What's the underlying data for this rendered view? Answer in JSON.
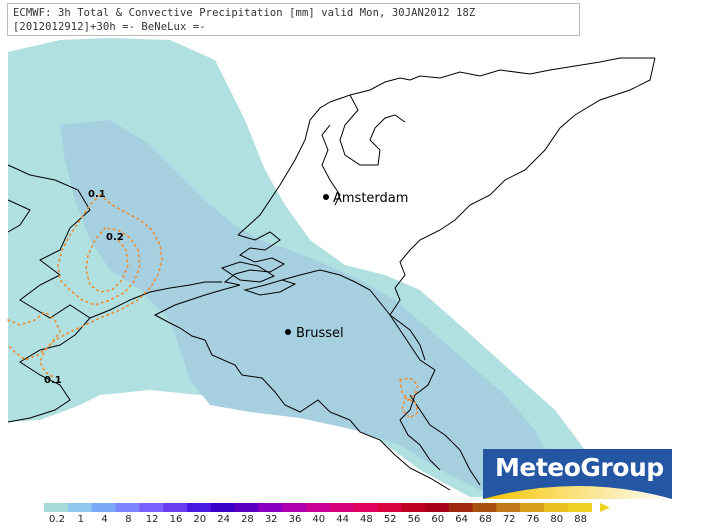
{
  "header": {
    "line1": "ECMWF: 3h Total & Convective Precipitation [mm] valid Mon, 30JAN2012 18Z",
    "line2": "[2012012912]+30h =- BeNeLux =-"
  },
  "cities": [
    {
      "name": "Amsterdam"
    },
    {
      "name": "Brussel"
    }
  ],
  "contour_labels": [
    "0.1",
    "0.2",
    "0.1"
  ],
  "logo": {
    "text": "MeteoGroup"
  },
  "legend": {
    "ticks": [
      "0.2",
      "1",
      "4",
      "8",
      "12",
      "16",
      "20",
      "24",
      "28",
      "32",
      "36",
      "40",
      "44",
      "48",
      "52",
      "56",
      "60",
      "64",
      "68",
      "72",
      "76",
      "80",
      "88"
    ],
    "colors": [
      "#a8dadc",
      "#8fc8f0",
      "#7aa8f8",
      "#7c84ff",
      "#7a60ff",
      "#6a3ef0",
      "#4a18e0",
      "#3a00c8",
      "#5a00c0",
      "#8a00c0",
      "#b000b0",
      "#c80098",
      "#d8007a",
      "#e00060",
      "#d80040",
      "#c00020",
      "#a80018",
      "#a02810",
      "#a85010",
      "#c07818",
      "#d8a018",
      "#e8c020",
      "#f0d020"
    ]
  },
  "colors": {
    "light_precip": "#b0e0e0",
    "medium_precip": "#a8cde0",
    "contour": "#ee8a30",
    "logo_bg": "#2456a4"
  }
}
